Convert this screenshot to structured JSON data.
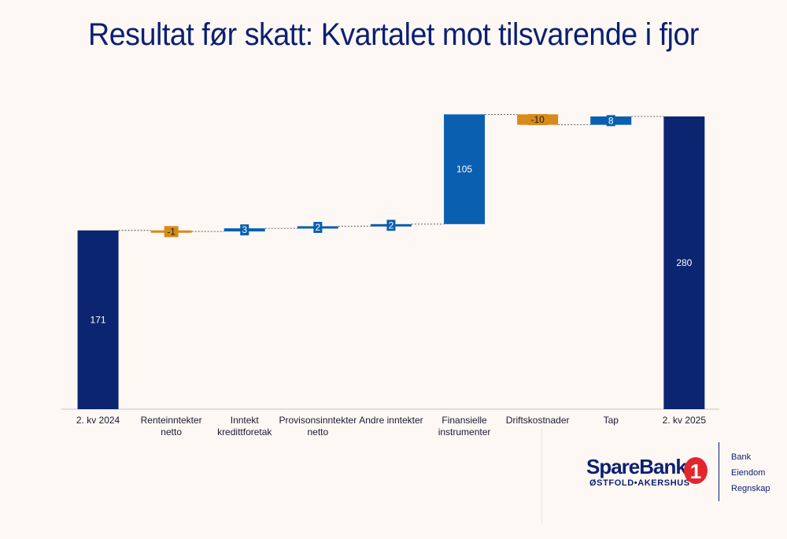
{
  "title": "Resultat før skatt: Kvartalet mot tilsvarende i fjor",
  "colors": {
    "total": "#0b2570",
    "increase": "#0a5fb0",
    "decrease": "#d98a1a",
    "text": "#0b1f73"
  },
  "chart_data": {
    "type": "waterfall",
    "categories": [
      [
        "2. kv 2024"
      ],
      [
        "Renteinntekter",
        "netto"
      ],
      [
        "Inntekt",
        "kredittforetak"
      ],
      [
        "Provisonsinntekter",
        "netto"
      ],
      [
        "Andre inntekter"
      ],
      [
        "Finansielle",
        "instrumenter"
      ],
      [
        "Driftskostnader"
      ],
      [
        "Tap"
      ],
      [
        "2. kv 2025"
      ]
    ],
    "values": [
      171,
      -1,
      3,
      2,
      2,
      105,
      -10,
      8,
      280
    ],
    "kinds": [
      "total",
      "decrease",
      "increase",
      "increase",
      "increase",
      "increase",
      "decrease",
      "increase",
      "total"
    ],
    "labels": [
      "171",
      "-1",
      "3",
      "2",
      "2",
      "105",
      "-10",
      "8",
      "280"
    ],
    "ylim": [
      0,
      280
    ]
  },
  "logo": {
    "name": "SpareBank",
    "mark": "1",
    "subtitle": "ØSTFOLD•AKERSHUS",
    "services": [
      "Bank",
      "Eiendom",
      "Regnskap"
    ]
  }
}
